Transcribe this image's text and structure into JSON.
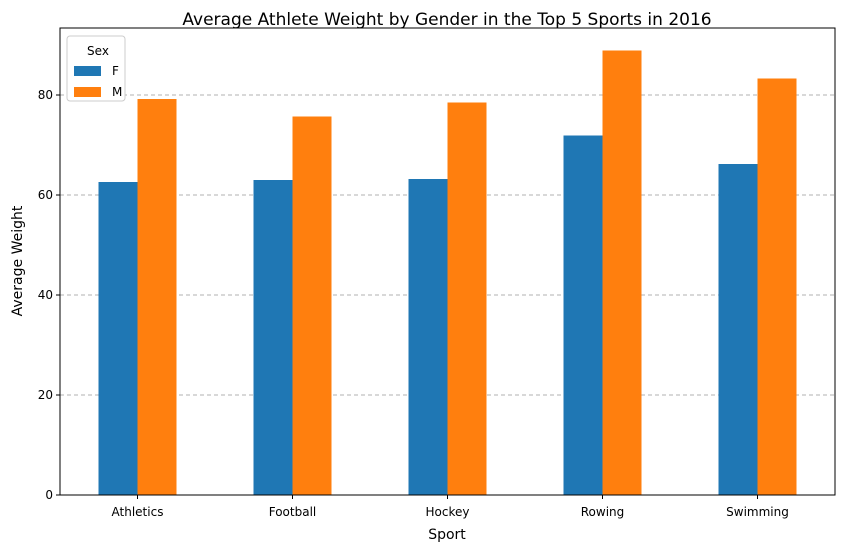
{
  "chart_data": {
    "type": "bar",
    "title": "Average Athlete Weight by Gender in the Top 5 Sports in 2016",
    "xlabel": "Sport",
    "ylabel": "Average Weight",
    "categories": [
      "Athletics",
      "Football",
      "Hockey",
      "Rowing",
      "Swimming"
    ],
    "series": [
      {
        "name": "F",
        "color": "#1f77b4",
        "values": [
          62.6,
          63.0,
          63.2,
          71.9,
          66.2
        ]
      },
      {
        "name": "M",
        "color": "#ff7f0e",
        "values": [
          79.2,
          75.7,
          78.5,
          88.9,
          83.3
        ]
      }
    ],
    "ylim": [
      0,
      93.4
    ],
    "yticks": [
      0,
      20,
      40,
      60,
      80
    ],
    "grid": "y-dashed",
    "legend": {
      "title": "Sex",
      "placement": "top-left"
    }
  }
}
